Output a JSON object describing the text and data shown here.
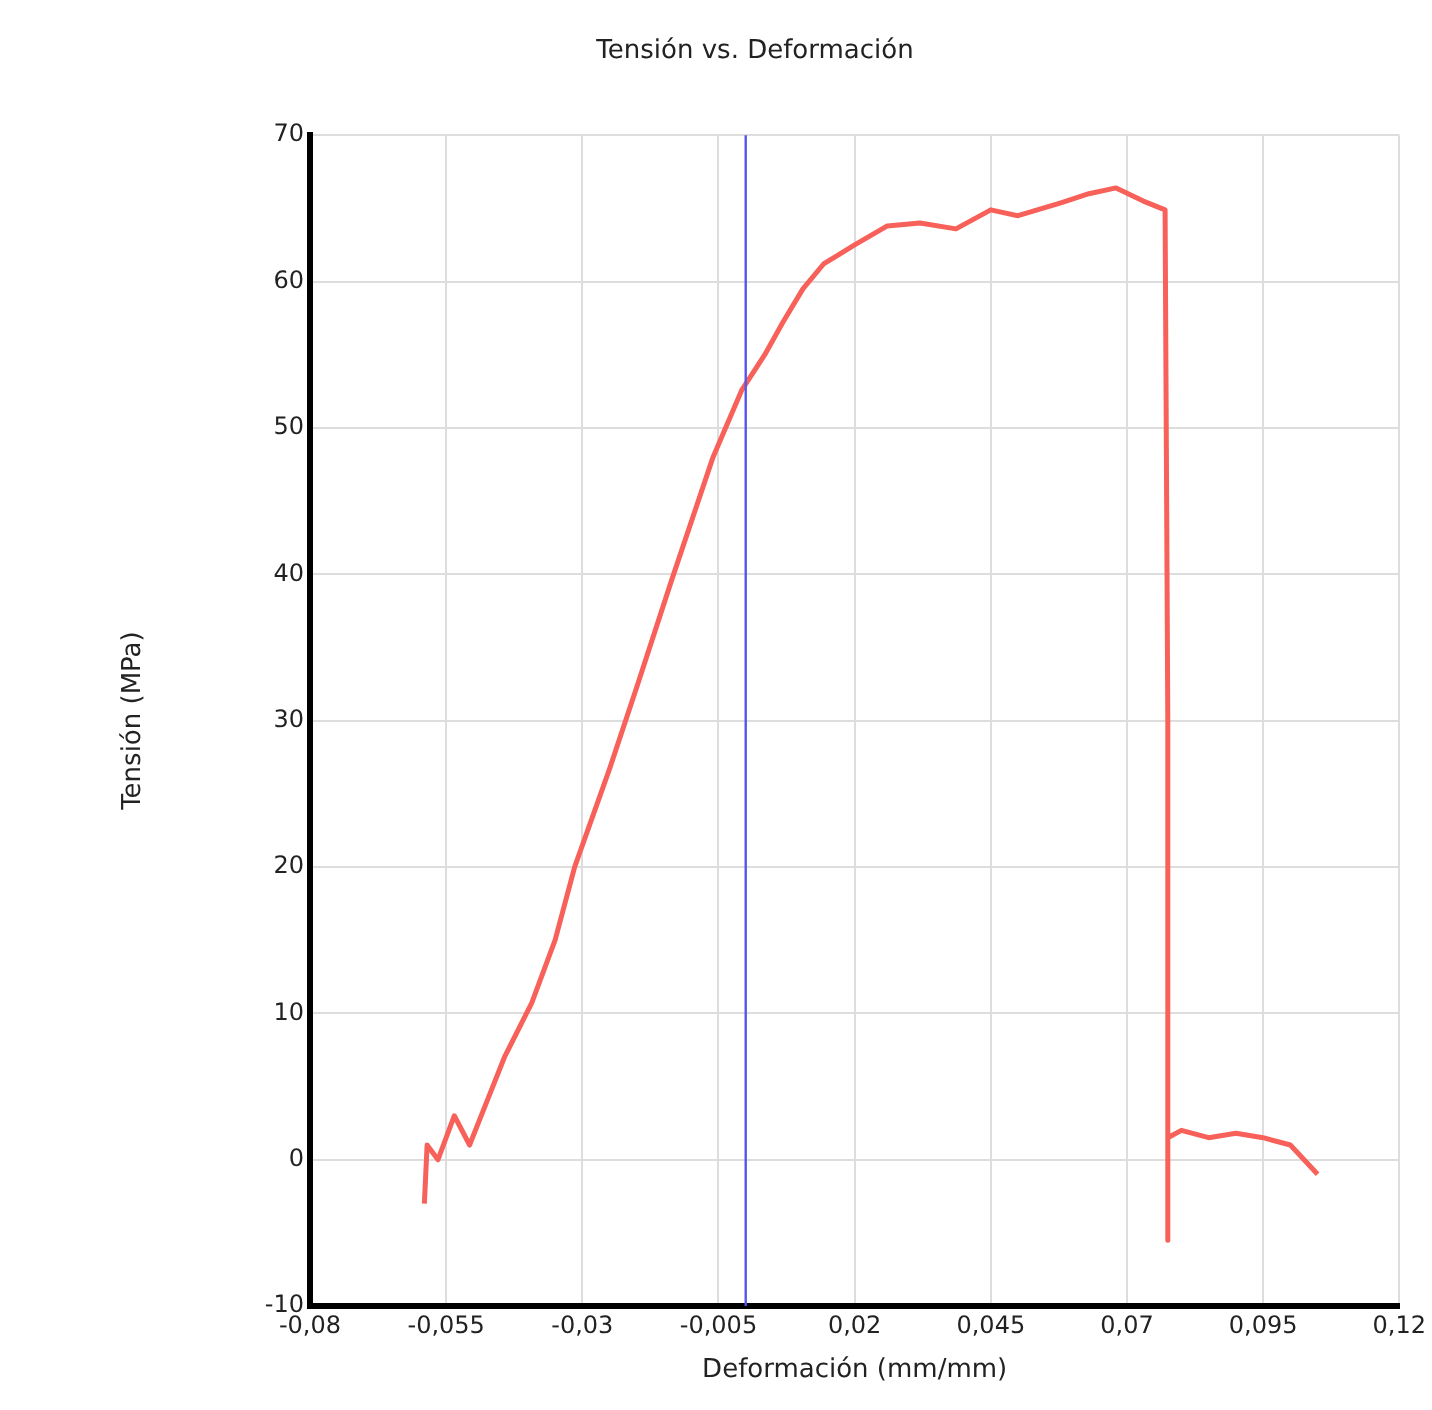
{
  "chart_data": {
    "type": "line",
    "title": "Tensión vs. Deformación",
    "xlabel": "Deformación (mm/mm)",
    "ylabel": "Tensión (MPa)",
    "series": [
      {
        "color": "#f8605a",
        "x": [
          -0.059,
          -0.0585,
          -0.0565,
          -0.0535,
          -0.0507,
          -0.0475,
          -0.0443,
          -0.0393,
          -0.035,
          -0.0314,
          -0.025,
          -0.02,
          -0.0136,
          -0.006,
          -0.0007,
          0.0035,
          0.0068,
          0.0105,
          0.0143,
          0.02,
          0.026,
          0.032,
          0.0386,
          0.045,
          0.05,
          0.058,
          0.063,
          0.068,
          0.073,
          0.077,
          0.0775,
          0.0775,
          0.0775,
          0.08,
          0.085,
          0.09,
          0.095,
          0.1,
          0.105
        ],
        "values": [
          -3,
          1,
          0,
          3,
          1,
          4,
          7,
          10.7,
          15,
          20,
          26.7,
          32.3,
          39.6,
          48,
          52.6,
          55,
          57.2,
          59.5,
          61.2,
          62.5,
          63.8,
          64,
          63.6,
          64.9,
          64.5,
          65.4,
          66,
          66.4,
          65.5,
          64.9,
          30,
          -5.5,
          1.5,
          2,
          1.5,
          1.8,
          1.5,
          1,
          -1
        ]
      }
    ],
    "ref_lines": [
      {
        "axis": "x",
        "value": 0,
        "color": "#5555ee"
      }
    ],
    "xlim": [
      -0.08,
      0.12
    ],
    "xticks": [
      {
        "value": -0.08,
        "label": "-0,08"
      },
      {
        "value": -0.055,
        "label": "-0,055"
      },
      {
        "value": -0.03,
        "label": "-0,03"
      },
      {
        "value": -0.005,
        "label": "-0,005"
      },
      {
        "value": 0.02,
        "label": "0,02"
      },
      {
        "value": 0.045,
        "label": "0,045"
      },
      {
        "value": 0.07,
        "label": "0,07"
      },
      {
        "value": 0.095,
        "label": "0,095"
      },
      {
        "value": 0.12,
        "label": "0,12"
      }
    ],
    "ylim": [
      -10,
      70
    ],
    "yticks": [
      -10,
      0,
      10,
      20,
      30,
      40,
      50,
      60,
      70
    ],
    "grid": true,
    "legend": false,
    "marker": "none",
    "line_style": "solid"
  }
}
